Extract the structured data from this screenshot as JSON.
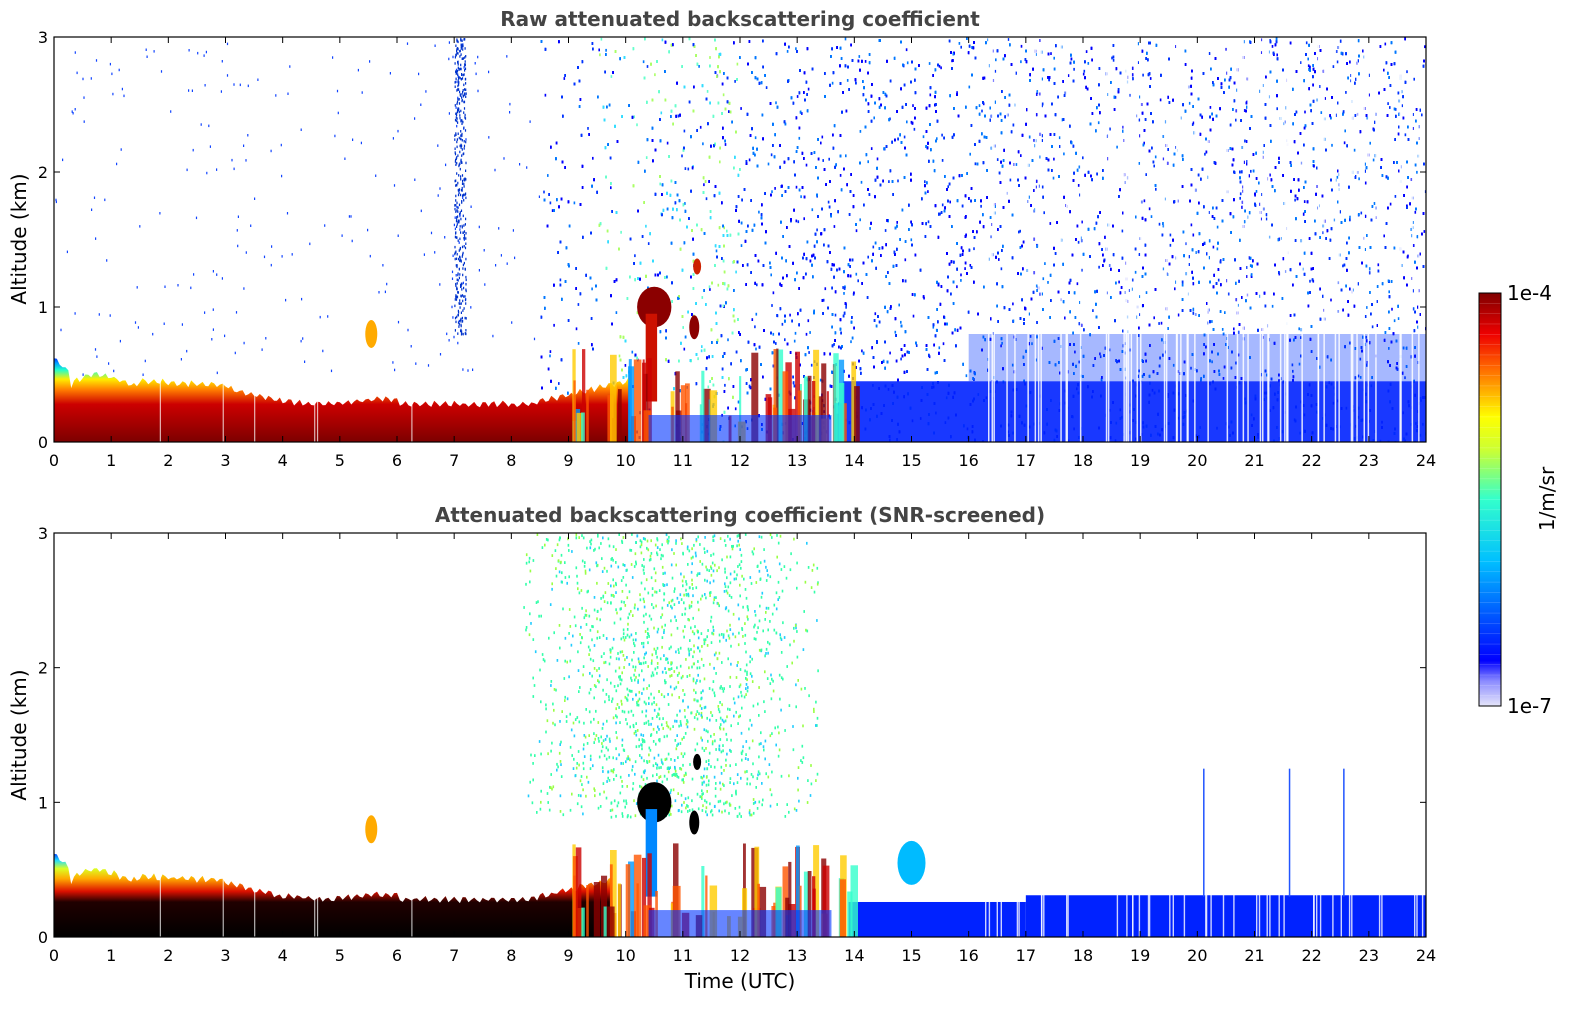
{
  "chart_data": [
    {
      "type": "heatmap",
      "title": "Raw attenuated backscattering coefficient",
      "xlabel": "",
      "ylabel": "Altitude (km)",
      "xlim": [
        0,
        24
      ],
      "ylim": [
        0,
        3
      ],
      "xticks": [
        0,
        1,
        2,
        3,
        4,
        5,
        6,
        7,
        8,
        9,
        10,
        11,
        12,
        13,
        14,
        15,
        16,
        17,
        18,
        19,
        20,
        21,
        22,
        23,
        24
      ],
      "yticks": [
        0,
        1,
        2,
        3
      ],
      "features": [
        {
          "feature": "boundary layer aerosol",
          "x_start": 0,
          "x_end": 10,
          "top_km": 0.45,
          "level": "high"
        },
        {
          "feature": "cloud",
          "x_start": 10.2,
          "x_end": 10.8,
          "base_km": 0.9,
          "top_km": 1.1,
          "level": "high"
        },
        {
          "feature": "convective plumes",
          "x_start": 9,
          "x_end": 14,
          "top_km": 0.8,
          "level": "high"
        },
        {
          "feature": "noise",
          "x_start": 8.5,
          "x_end": 24,
          "level": "low"
        }
      ]
    },
    {
      "type": "heatmap",
      "title": "Attenuated backscattering coefficient (SNR-screened)",
      "xlabel": "Time (UTC)",
      "ylabel": "Altitude (km)",
      "xlim": [
        0,
        24
      ],
      "ylim": [
        0,
        3
      ],
      "xticks": [
        0,
        1,
        2,
        3,
        4,
        5,
        6,
        7,
        8,
        9,
        10,
        11,
        12,
        13,
        14,
        15,
        16,
        17,
        18,
        19,
        20,
        21,
        22,
        23,
        24
      ],
      "yticks": [
        0,
        1,
        2,
        3
      ],
      "features": [
        {
          "feature": "boundary layer aerosol",
          "x_start": 0,
          "x_end": 10,
          "top_km": 0.45,
          "level": "high"
        },
        {
          "feature": "cloud",
          "x_start": 10.2,
          "x_end": 10.8,
          "base_km": 0.9,
          "top_km": 1.2,
          "level": "high"
        },
        {
          "feature": "low-level layer",
          "x_start": 14,
          "x_end": 24,
          "top_km": 0.3,
          "level": "low"
        }
      ]
    }
  ],
  "colorbar": {
    "label": "1/m/sr",
    "max_label": "1e-4",
    "min_label": "1e-7",
    "scale": "log",
    "colormap": "jet",
    "range": [
      1e-07,
      0.0001
    ]
  }
}
